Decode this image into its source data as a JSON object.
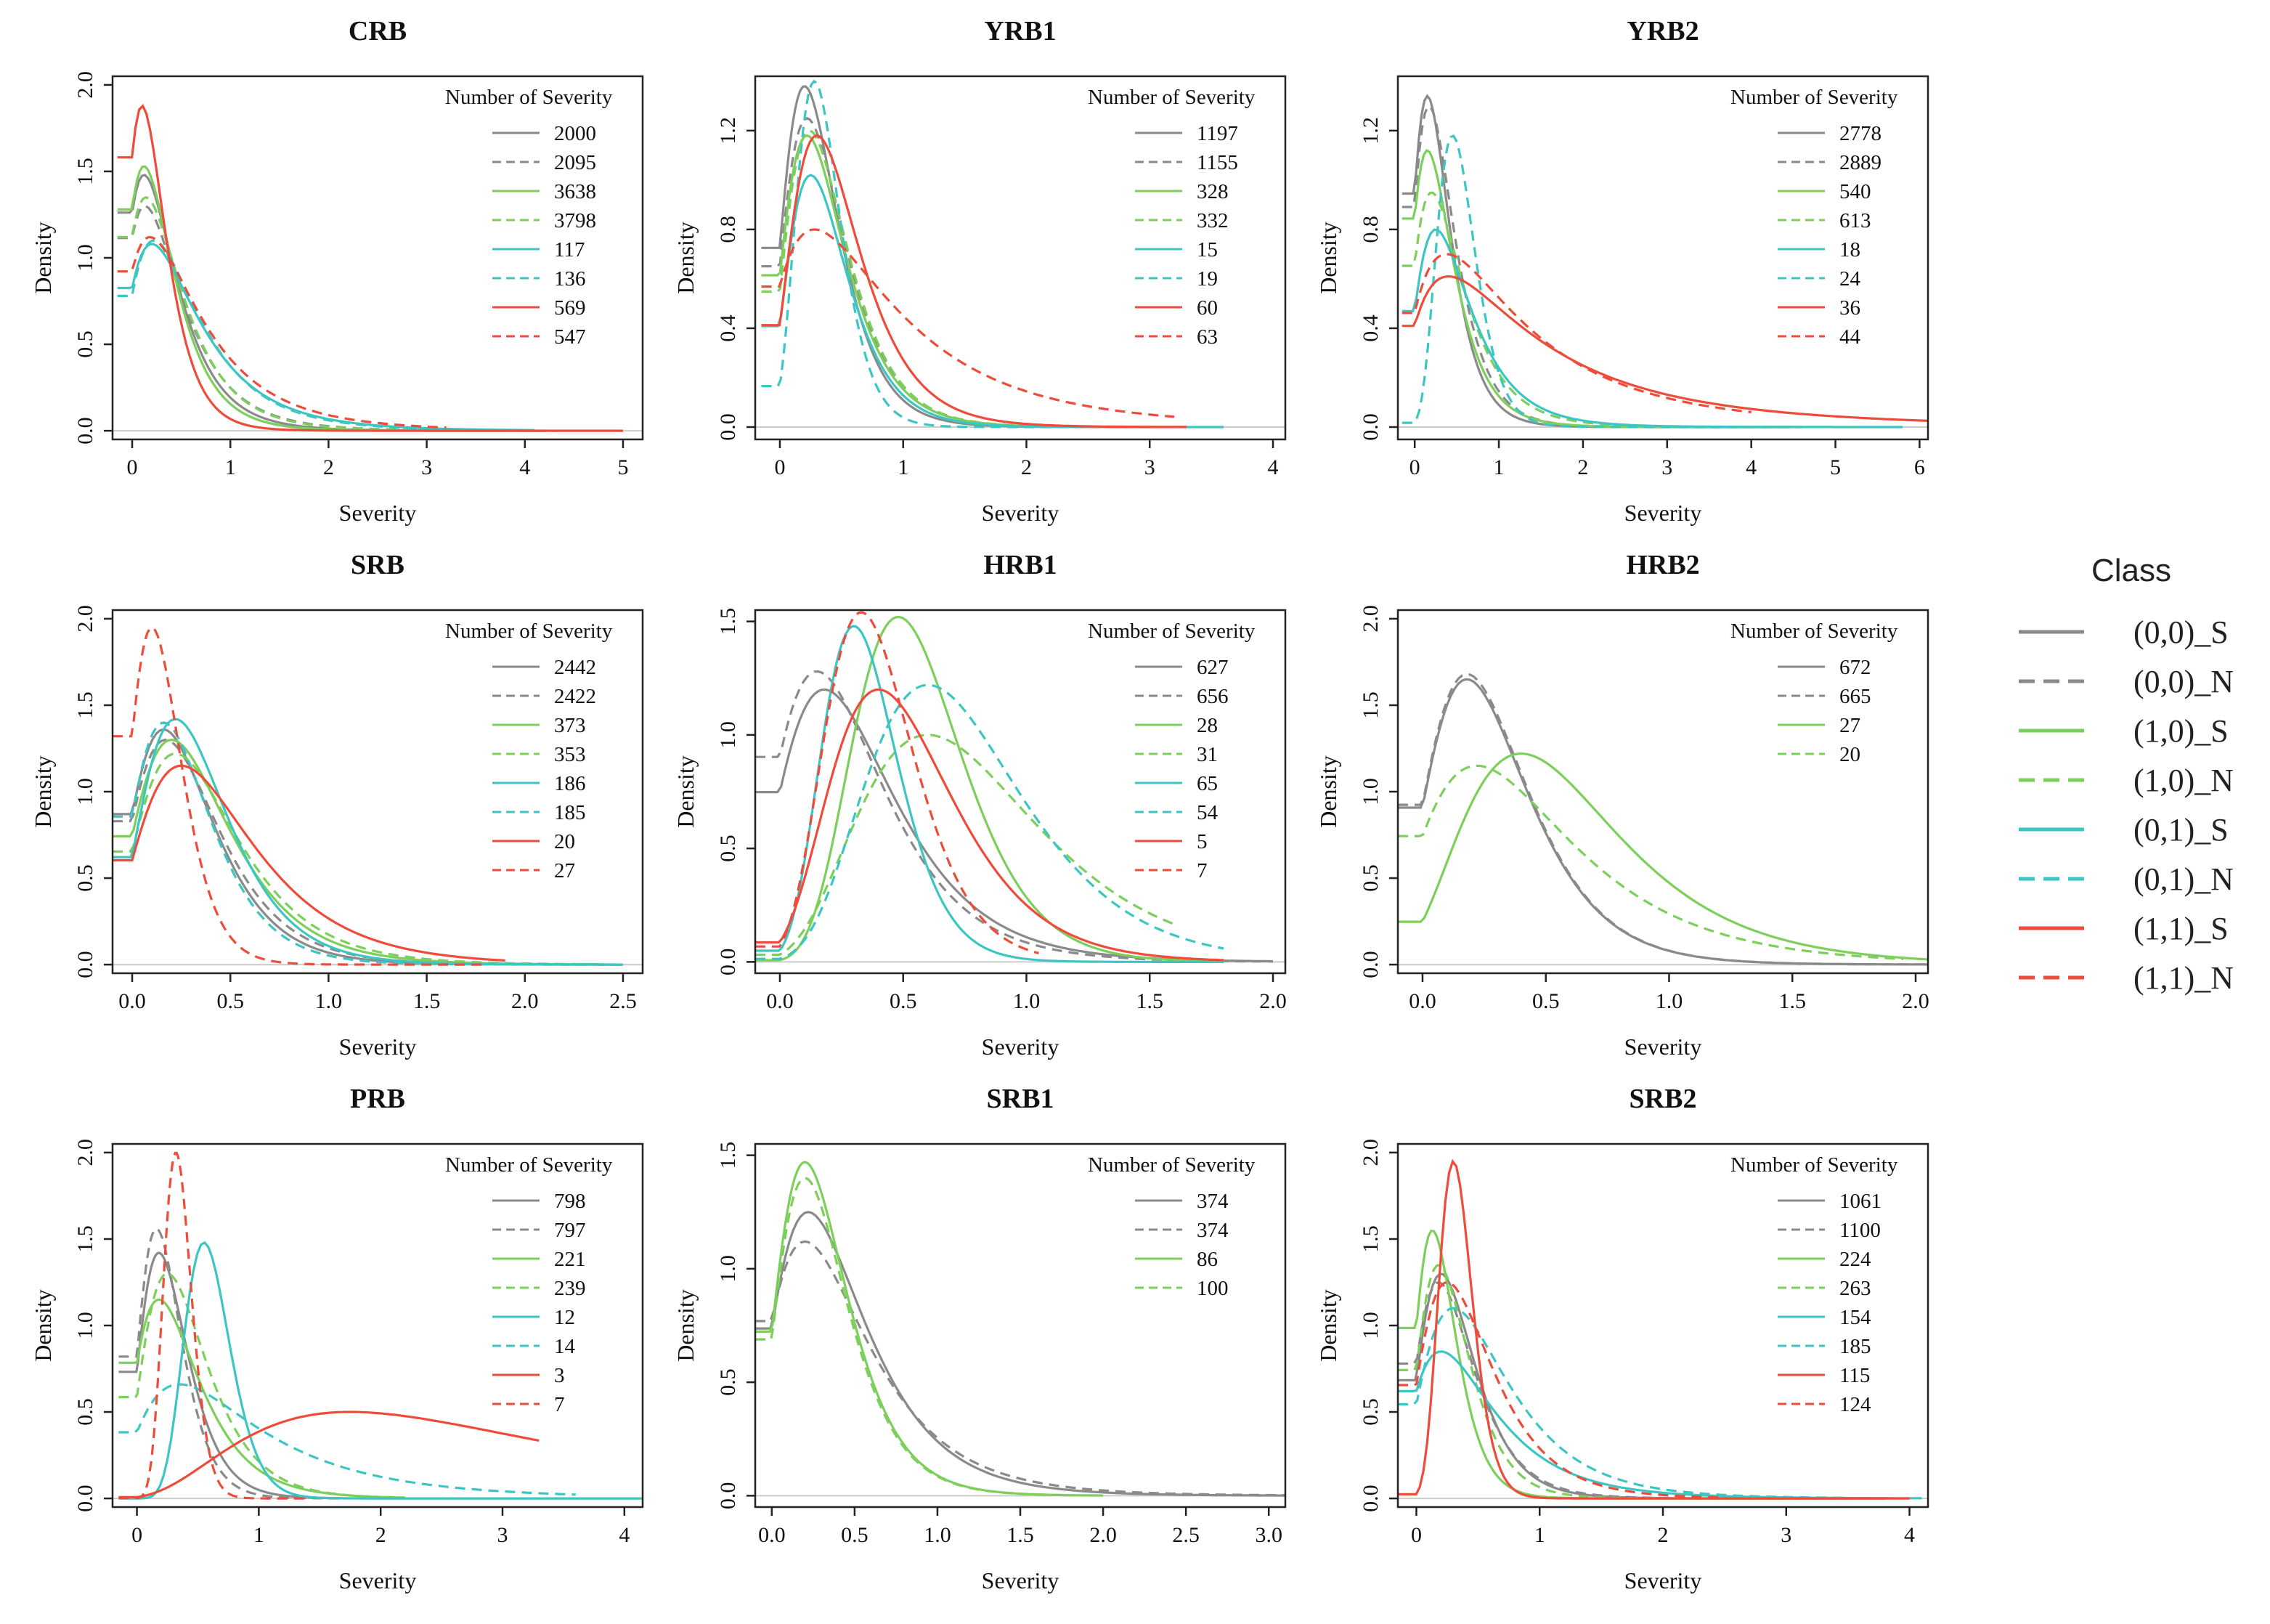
{
  "figure": {
    "class_legend_title": "Class",
    "classes": [
      {
        "label": "(0,0)_S",
        "color": "#8a8a8a",
        "dash": false
      },
      {
        "label": "(0,0)_N",
        "color": "#8a8a8a",
        "dash": true
      },
      {
        "label": "(1,0)_S",
        "color": "#7ccf5a",
        "dash": false
      },
      {
        "label": "(1,0)_N",
        "color": "#7ccf5a",
        "dash": true
      },
      {
        "label": "(0,1)_S",
        "color": "#3cc6c3",
        "dash": false
      },
      {
        "label": "(0,1)_N",
        "color": "#3cc6c3",
        "dash": true
      },
      {
        "label": "(1,1)_S",
        "color": "#ee4b3a",
        "dash": false
      },
      {
        "label": "(1,1)_N",
        "color": "#ee4b3a",
        "dash": true
      }
    ]
  },
  "chart_data": [
    {
      "type": "line",
      "title": "CRB",
      "xlabel": "Severity",
      "ylabel": "Density",
      "xlim": [
        -0.2,
        5.2
      ],
      "ylim": [
        -0.05,
        2.05
      ],
      "xticks": [
        0,
        1,
        2,
        3,
        4,
        5
      ],
      "xtick_labels": [
        "0",
        "1",
        "2",
        "3",
        "4",
        "5"
      ],
      "yticks": [
        0,
        0.5,
        1,
        1.5,
        2
      ],
      "ytick_labels": [
        "0.0",
        "0.5",
        "1.0",
        "1.5",
        "2.0"
      ],
      "legend_title": "Number of Severity",
      "series": [
        {
          "name": "2000",
          "class": 0,
          "mode": 0.12,
          "peak": 1.48,
          "spread": 0.55,
          "end": 4.2
        },
        {
          "name": "2095",
          "class": 1,
          "mode": 0.13,
          "peak": 1.3,
          "spread": 0.6,
          "end": 4.3
        },
        {
          "name": "3638",
          "class": 2,
          "mode": 0.12,
          "peak": 1.53,
          "spread": 0.52,
          "end": 3.8
        },
        {
          "name": "3798",
          "class": 3,
          "mode": 0.14,
          "peak": 1.35,
          "spread": 0.58,
          "end": 3.9
        },
        {
          "name": "117",
          "class": 4,
          "mode": 0.2,
          "peak": 1.08,
          "spread": 0.65,
          "end": 4.1
        },
        {
          "name": "136",
          "class": 5,
          "mode": 0.22,
          "peak": 1.1,
          "spread": 0.62,
          "end": 4.0
        },
        {
          "name": "569",
          "class": 6,
          "mode": 0.1,
          "peak": 1.88,
          "spread": 0.45,
          "end": 5.0
        },
        {
          "name": "547",
          "class": 7,
          "mode": 0.18,
          "peak": 1.12,
          "spread": 0.7,
          "end": 3.2
        }
      ]
    },
    {
      "type": "line",
      "title": "YRB1",
      "xlabel": "Severity",
      "ylabel": "Density",
      "xlim": [
        -0.2,
        4.1
      ],
      "ylim": [
        -0.05,
        1.42
      ],
      "xticks": [
        0,
        1,
        2,
        3,
        4
      ],
      "xtick_labels": [
        "0",
        "1",
        "2",
        "3",
        "4"
      ],
      "yticks": [
        0,
        0.4,
        0.8,
        1.2
      ],
      "ytick_labels": [
        "0.0",
        "0.4",
        "0.8",
        "1.2"
      ],
      "legend_title": "Number of Severity",
      "series": [
        {
          "name": "1197",
          "class": 0,
          "mode": 0.2,
          "peak": 1.38,
          "spread": 0.42,
          "end": 2.8
        },
        {
          "name": "1155",
          "class": 1,
          "mode": 0.22,
          "peak": 1.25,
          "spread": 0.45,
          "end": 2.9
        },
        {
          "name": "328",
          "class": 2,
          "mode": 0.22,
          "peak": 1.18,
          "spread": 0.45,
          "end": 2.9
        },
        {
          "name": "332",
          "class": 3,
          "mode": 0.24,
          "peak": 1.2,
          "spread": 0.44,
          "end": 2.9
        },
        {
          "name": "15",
          "class": 4,
          "mode": 0.25,
          "peak": 1.02,
          "spread": 0.42,
          "end": 3.6
        },
        {
          "name": "19",
          "class": 5,
          "mode": 0.28,
          "peak": 1.4,
          "spread": 0.3,
          "end": 3.0
        },
        {
          "name": "60",
          "class": 6,
          "mode": 0.3,
          "peak": 1.18,
          "spread": 0.45,
          "end": 3.3
        },
        {
          "name": "63",
          "class": 7,
          "mode": 0.28,
          "peak": 0.8,
          "spread": 0.75,
          "end": 3.2
        }
      ]
    },
    {
      "type": "line",
      "title": "YRB2",
      "xlabel": "Severity",
      "ylabel": "Density",
      "xlim": [
        -0.2,
        6.1
      ],
      "ylim": [
        -0.05,
        1.42
      ],
      "xticks": [
        0,
        1,
        2,
        3,
        4,
        5,
        6
      ],
      "xtick_labels": [
        "0",
        "1",
        "2",
        "3",
        "4",
        "5",
        "6"
      ],
      "yticks": [
        0,
        0.4,
        0.8,
        1.2
      ],
      "ytick_labels": [
        "0.0",
        "0.4",
        "0.8",
        "1.2"
      ],
      "legend_title": "Number of Severity",
      "series": [
        {
          "name": "2778",
          "class": 0,
          "mode": 0.15,
          "peak": 1.34,
          "spread": 0.45,
          "end": 4.5
        },
        {
          "name": "2889",
          "class": 1,
          "mode": 0.17,
          "peak": 1.3,
          "spread": 0.48,
          "end": 4.6
        },
        {
          "name": "540",
          "class": 2,
          "mode": 0.15,
          "peak": 1.12,
          "spread": 0.5,
          "end": 4.4
        },
        {
          "name": "613",
          "class": 3,
          "mode": 0.2,
          "peak": 0.95,
          "spread": 0.55,
          "end": 4.5
        },
        {
          "name": "18",
          "class": 4,
          "mode": 0.25,
          "peak": 0.8,
          "spread": 0.55,
          "end": 5.8
        },
        {
          "name": "24",
          "class": 5,
          "mode": 0.45,
          "peak": 1.18,
          "spread": 0.3,
          "end": 4.6
        },
        {
          "name": "36",
          "class": 6,
          "mode": 0.4,
          "peak": 0.61,
          "spread": 0.9,
          "end": 6.1
        },
        {
          "name": "44",
          "class": 7,
          "mode": 0.38,
          "peak": 0.7,
          "spread": 0.85,
          "end": 4.0
        }
      ]
    },
    {
      "type": "line",
      "title": "SRB",
      "xlabel": "Severity",
      "ylabel": "Density",
      "xlim": [
        -0.1,
        2.6
      ],
      "ylim": [
        -0.05,
        2.05
      ],
      "xticks": [
        0,
        0.5,
        1,
        1.5,
        2,
        2.5
      ],
      "xtick_labels": [
        "0.0",
        "0.5",
        "1.0",
        "1.5",
        "2.0",
        "2.5"
      ],
      "yticks": [
        0,
        0.5,
        1,
        1.5,
        2
      ],
      "ytick_labels": [
        "0.0",
        "0.5",
        "1.0",
        "1.5",
        "2.0"
      ],
      "legend_title": "Number of Severity",
      "series": [
        {
          "name": "2442",
          "class": 0,
          "mode": 0.16,
          "peak": 1.36,
          "spread": 0.42,
          "end": 2.5
        },
        {
          "name": "2422",
          "class": 1,
          "mode": 0.17,
          "peak": 1.3,
          "spread": 0.44,
          "end": 2.4
        },
        {
          "name": "373",
          "class": 2,
          "mode": 0.2,
          "peak": 1.3,
          "spread": 0.45,
          "end": 2.4
        },
        {
          "name": "353",
          "class": 3,
          "mode": 0.22,
          "peak": 1.22,
          "spread": 0.46,
          "end": 2.4
        },
        {
          "name": "186",
          "class": 4,
          "mode": 0.22,
          "peak": 1.42,
          "spread": 0.4,
          "end": 2.5
        },
        {
          "name": "185",
          "class": 5,
          "mode": 0.16,
          "peak": 1.4,
          "spread": 0.4,
          "end": 2.5
        },
        {
          "name": "20",
          "class": 6,
          "mode": 0.25,
          "peak": 1.15,
          "spread": 0.5,
          "end": 1.9
        },
        {
          "name": "27",
          "class": 7,
          "mode": 0.1,
          "peak": 1.95,
          "spread": 0.3,
          "end": 1.8
        }
      ]
    },
    {
      "type": "line",
      "title": "HRB1",
      "xlabel": "Severity",
      "ylabel": "Density",
      "xlim": [
        -0.1,
        2.05
      ],
      "ylim": [
        -0.05,
        1.55
      ],
      "xticks": [
        0,
        0.5,
        1,
        1.5,
        2
      ],
      "xtick_labels": [
        "0.0",
        "0.5",
        "1.0",
        "1.5",
        "2.0"
      ],
      "yticks": [
        0,
        0.5,
        1,
        1.5
      ],
      "ytick_labels": [
        "0.0",
        "0.5",
        "1.0",
        "1.5"
      ],
      "legend_title": "Number of Severity",
      "series": [
        {
          "name": "627",
          "class": 0,
          "mode": 0.18,
          "peak": 1.2,
          "spread": 0.45,
          "end": 2.0
        },
        {
          "name": "656",
          "class": 1,
          "mode": 0.15,
          "peak": 1.28,
          "spread": 0.45,
          "end": 2.0
        },
        {
          "name": "28",
          "class": 2,
          "mode": 0.48,
          "peak": 1.52,
          "spread": 0.28,
          "end": 1.8
        },
        {
          "name": "31",
          "class": 3,
          "mode": 0.6,
          "peak": 1.0,
          "spread": 0.4,
          "end": 1.6
        },
        {
          "name": "65",
          "class": 4,
          "mode": 0.3,
          "peak": 1.48,
          "spread": 0.25,
          "end": 1.8
        },
        {
          "name": "54",
          "class": 5,
          "mode": 0.6,
          "peak": 1.22,
          "spread": 0.35,
          "end": 1.8
        },
        {
          "name": "5",
          "class": 6,
          "mode": 0.4,
          "peak": 1.2,
          "spread": 0.35,
          "end": 1.8
        },
        {
          "name": "7",
          "class": 7,
          "mode": 0.33,
          "peak": 1.54,
          "spread": 0.28,
          "end": 1.05
        }
      ]
    },
    {
      "type": "line",
      "title": "HRB2",
      "xlabel": "Severity",
      "ylabel": "Density",
      "xlim": [
        -0.1,
        2.05
      ],
      "ylim": [
        -0.05,
        2.05
      ],
      "xticks": [
        0,
        0.5,
        1,
        1.5,
        2
      ],
      "xtick_labels": [
        "0.0",
        "0.5",
        "1.0",
        "1.5",
        "2.0"
      ],
      "yticks": [
        0,
        0.5,
        1,
        1.5,
        2
      ],
      "ytick_labels": [
        "0.0",
        "0.5",
        "1.0",
        "1.5",
        "2.0"
      ],
      "legend_title": "Number of Severity",
      "series": [
        {
          "name": "672",
          "class": 0,
          "mode": 0.18,
          "peak": 1.65,
          "spread": 0.4,
          "end": 2.05
        },
        {
          "name": "665",
          "class": 1,
          "mode": 0.18,
          "peak": 1.68,
          "spread": 0.4,
          "end": 2.05
        },
        {
          "name": "27",
          "class": 2,
          "mode": 0.4,
          "peak": 1.22,
          "spread": 0.45,
          "end": 2.05
        },
        {
          "name": "20",
          "class": 3,
          "mode": 0.22,
          "peak": 1.15,
          "spread": 0.55,
          "end": 1.95
        }
      ]
    },
    {
      "type": "line",
      "title": "PRB",
      "xlabel": "Severity",
      "ylabel": "Density",
      "xlim": [
        -0.2,
        4.15
      ],
      "ylim": [
        -0.05,
        2.05
      ],
      "xticks": [
        0,
        1,
        2,
        3,
        4
      ],
      "xtick_labels": [
        "0",
        "1",
        "2",
        "3",
        "4"
      ],
      "yticks": [
        0,
        0.5,
        1,
        1.5,
        2
      ],
      "ytick_labels": [
        "0.0",
        "0.5",
        "1.0",
        "1.5",
        "2.0"
      ],
      "legend_title": "Number of Severity",
      "series": [
        {
          "name": "798",
          "class": 0,
          "mode": 0.18,
          "peak": 1.42,
          "spread": 0.38,
          "end": 1.7
        },
        {
          "name": "797",
          "class": 1,
          "mode": 0.16,
          "peak": 1.56,
          "spread": 0.35,
          "end": 1.7
        },
        {
          "name": "221",
          "class": 2,
          "mode": 0.18,
          "peak": 1.15,
          "spread": 0.5,
          "end": 2.2
        },
        {
          "name": "239",
          "class": 3,
          "mode": 0.25,
          "peak": 1.3,
          "spread": 0.45,
          "end": 2.0
        },
        {
          "name": "12",
          "class": 4,
          "mode": 0.55,
          "peak": 1.48,
          "spread": 0.22,
          "end": 4.15
        },
        {
          "name": "14",
          "class": 5,
          "mode": 0.35,
          "peak": 0.66,
          "spread": 0.7,
          "end": 3.6
        },
        {
          "name": "3",
          "class": 6,
          "mode": 1.75,
          "peak": 0.5,
          "spread": 0.65,
          "end": 3.3
        },
        {
          "name": "7",
          "class": 7,
          "mode": 0.32,
          "peak": 2.0,
          "spread": 0.18,
          "end": 1.4
        }
      ]
    },
    {
      "type": "line",
      "title": "SRB1",
      "xlabel": "Severity",
      "ylabel": "Density",
      "xlim": [
        -0.1,
        3.1
      ],
      "ylim": [
        -0.05,
        1.55
      ],
      "xticks": [
        0,
        0.5,
        1,
        1.5,
        2,
        2.5,
        3
      ],
      "xtick_labels": [
        "0.0",
        "0.5",
        "1.0",
        "1.5",
        "2.0",
        "2.5",
        "3.0"
      ],
      "yticks": [
        0,
        0.5,
        1,
        1.5
      ],
      "ytick_labels": [
        "0.0",
        "0.5",
        "1.0",
        "1.5"
      ],
      "legend_title": "Number of Severity",
      "series": [
        {
          "name": "374",
          "class": 0,
          "mode": 0.22,
          "peak": 1.25,
          "spread": 0.5,
          "end": 3.1
        },
        {
          "name": "374",
          "class": 1,
          "mode": 0.2,
          "peak": 1.12,
          "spread": 0.55,
          "end": 3.1
        },
        {
          "name": "86",
          "class": 2,
          "mode": 0.2,
          "peak": 1.47,
          "spread": 0.4,
          "end": 2.0
        },
        {
          "name": "100",
          "class": 3,
          "mode": 0.2,
          "peak": 1.4,
          "spread": 0.4,
          "end": 1.8
        }
      ]
    },
    {
      "type": "line",
      "title": "SRB2",
      "xlabel": "Severity",
      "ylabel": "Density",
      "xlim": [
        -0.15,
        4.15
      ],
      "ylim": [
        -0.05,
        2.05
      ],
      "xticks": [
        0,
        1,
        2,
        3,
        4
      ],
      "xtick_labels": [
        "0",
        "1",
        "2",
        "3",
        "4"
      ],
      "yticks": [
        0,
        0.5,
        1,
        1.5,
        2
      ],
      "ytick_labels": [
        "0.0",
        "0.5",
        "1.0",
        "1.5",
        "2.0"
      ],
      "legend_title": "Number of Severity",
      "series": [
        {
          "name": "1061",
          "class": 0,
          "mode": 0.2,
          "peak": 1.3,
          "spread": 0.42,
          "end": 3.8
        },
        {
          "name": "1100",
          "class": 1,
          "mode": 0.18,
          "peak": 1.25,
          "spread": 0.45,
          "end": 3.5
        },
        {
          "name": "224",
          "class": 2,
          "mode": 0.13,
          "peak": 1.55,
          "spread": 0.35,
          "end": 3.0
        },
        {
          "name": "263",
          "class": 3,
          "mode": 0.18,
          "peak": 1.35,
          "spread": 0.4,
          "end": 3.0
        },
        {
          "name": "154",
          "class": 4,
          "mode": 0.2,
          "peak": 0.85,
          "spread": 0.6,
          "end": 4.1
        },
        {
          "name": "185",
          "class": 5,
          "mode": 0.3,
          "peak": 1.1,
          "spread": 0.55,
          "end": 3.5
        },
        {
          "name": "115",
          "class": 6,
          "mode": 0.3,
          "peak": 1.95,
          "spread": 0.22,
          "end": 4.0
        },
        {
          "name": "124",
          "class": 7,
          "mode": 0.25,
          "peak": 1.25,
          "spread": 0.5,
          "end": 2.5
        }
      ]
    }
  ]
}
